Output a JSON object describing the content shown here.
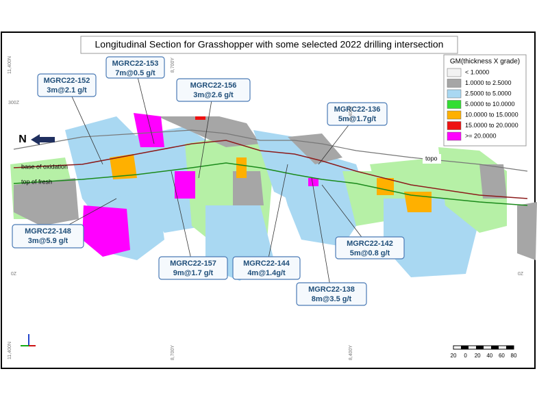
{
  "title": "Longitudinal Section for Grasshopper with some selected 2022 drilling intersection",
  "callouts": [
    {
      "hole": "MGRC22-152",
      "result": "3m@2.1 g/t"
    },
    {
      "hole": "MGRC22-153",
      "result": "7m@0.5 g/t"
    },
    {
      "hole": "MGRC22-156",
      "result": "3m@2.6 g/t"
    },
    {
      "hole": "MGRC22-136",
      "result": "5m@1.7g/t"
    },
    {
      "hole": "MGRC22-148",
      "result": "3m@5.9 g/t"
    },
    {
      "hole": "MGRC22-157",
      "result": "9m@1.7 g/t"
    },
    {
      "hole": "MGRC22-144",
      "result": "4m@1.4g/t"
    },
    {
      "hole": "MGRC22-142",
      "result": "5m@0.8 g/t"
    },
    {
      "hole": "MGRC22-138",
      "result": "8m@3.5 g/t"
    }
  ],
  "legend": {
    "title": "GM(thickness X grade)",
    "items": [
      {
        "label": "< 1.0000",
        "color": "#f2f2f2"
      },
      {
        "label": "1.0000 to 2.5000",
        "color": "#a6a6a6"
      },
      {
        "label": "2.5000 to 5.0000",
        "color": "#a9d8f2"
      },
      {
        "label": "5.0000 to 10.0000",
        "color": "#33dd33"
      },
      {
        "label": "10.0000 to 15.0000",
        "color": "#ffb000"
      },
      {
        "label": "15.0000 to 20.0000",
        "color": "#ee1111"
      },
      {
        "label": ">= 20.0000",
        "color": "#ff00ff"
      }
    ]
  },
  "labels": {
    "north": "N",
    "base_of_oxidation": "base of oxidation",
    "top_of_fresh": "top of fresh",
    "topo": "topo"
  },
  "grid_labels": {
    "northing_top": "11,400N",
    "northing_bottom": "11,400N",
    "y1_top": "8,700Y",
    "y2_top": "8,400Y",
    "y1_bottom": "8,700Y",
    "y2_bottom": "8,400Y",
    "rl_300": "300Z",
    "rl_0_left": "0Z",
    "rl_0_right": "0Z"
  },
  "scale_bar": [
    "20",
    "0",
    "20",
    "40",
    "60",
    "80"
  ]
}
